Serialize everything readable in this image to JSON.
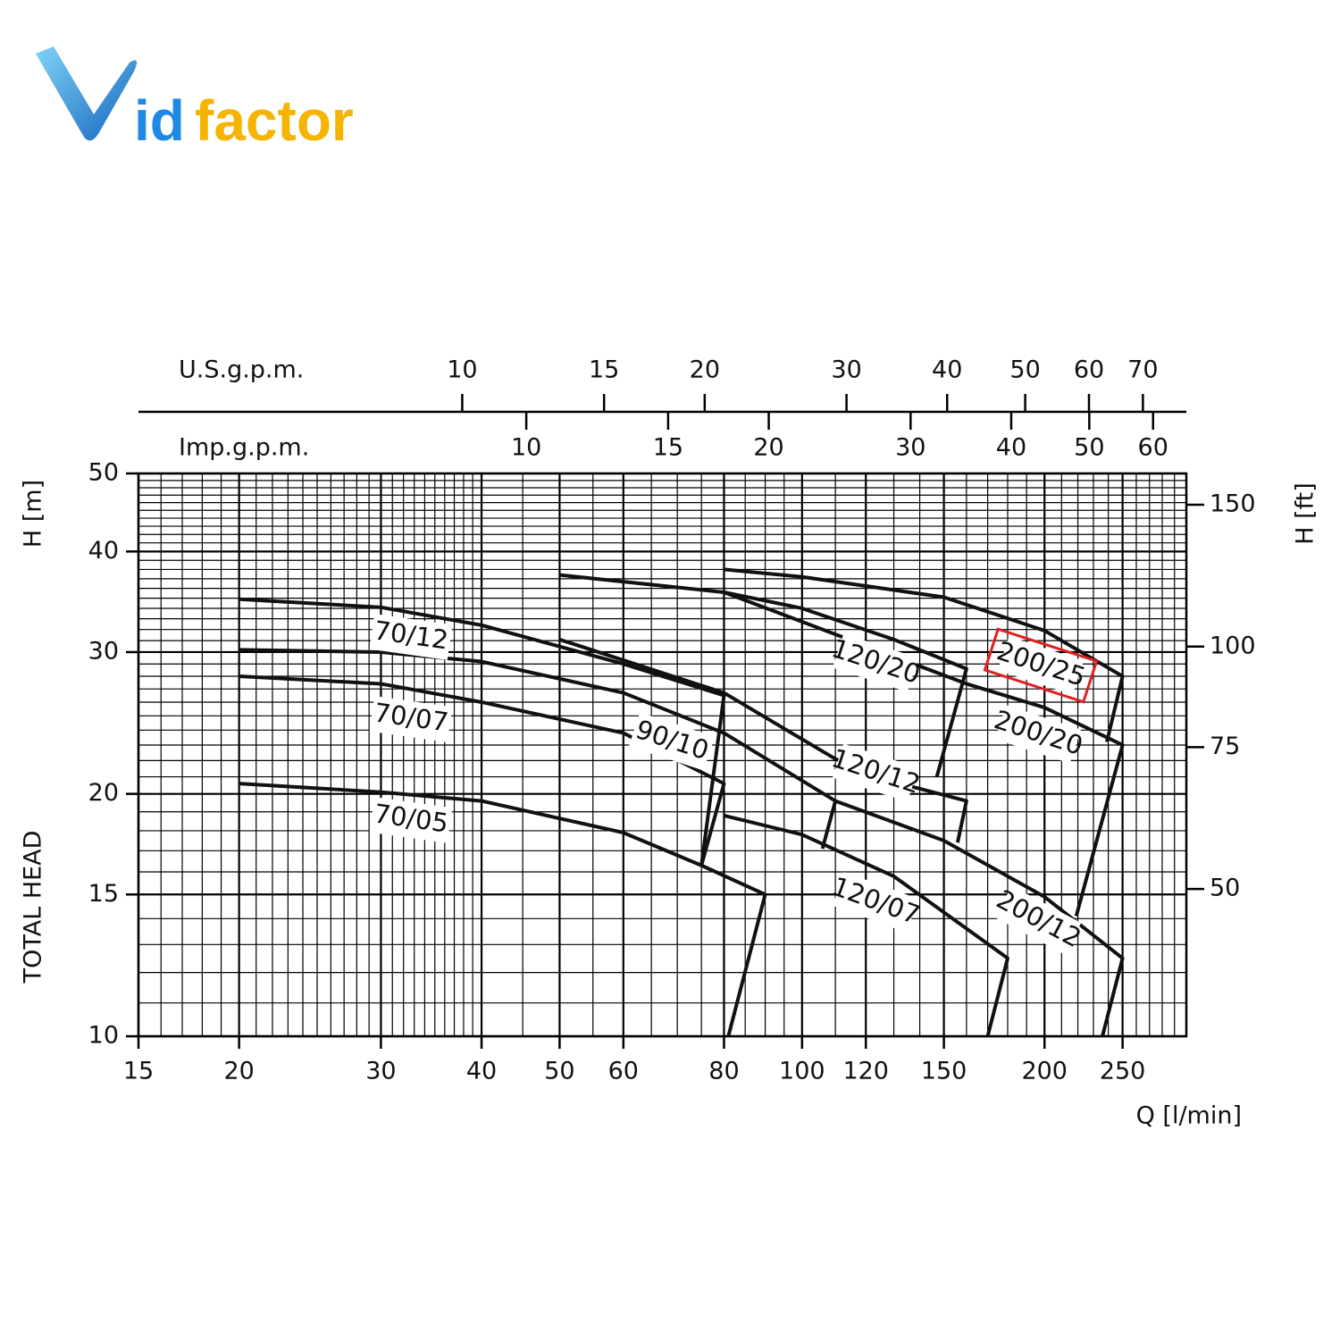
{
  "logo": [
    "id",
    "factor"
  ],
  "chart_data": {
    "type": "line",
    "x_label": "Q [l/min]",
    "y_label": "H [m]",
    "y_label_2": "TOTAL HEAD",
    "y2_label": "H [ft]",
    "xscale": "log",
    "yscale": "log",
    "grid": true,
    "minor_grid": true,
    "xlim": [
      15,
      300
    ],
    "xticks": [
      15,
      20,
      30,
      40,
      50,
      60,
      80,
      100,
      120,
      150,
      200,
      250
    ],
    "ylim": [
      10,
      50
    ],
    "yticks": [
      10,
      15,
      20,
      30,
      40,
      50
    ],
    "y2lim": [
      32.81,
      164.05
    ],
    "y2ticks": [
      50,
      75,
      100,
      150
    ],
    "top_axes": [
      {
        "label": "U.S.g.p.m.",
        "lim": [
          3.963,
          79.26
        ],
        "ticks": [
          10,
          15,
          20,
          30,
          40,
          50,
          60,
          70
        ]
      },
      {
        "label": "Imp.g.p.m.",
        "lim": [
          3.3,
          65.99
        ],
        "ticks": [
          10,
          15,
          20,
          30,
          40,
          50,
          60
        ]
      }
    ],
    "series": [
      {
        "name": "70/05",
        "color": "#111111",
        "x": [
          20,
          30,
          40,
          60,
          75,
          90,
          81
        ],
        "values": [
          20.6,
          20.1,
          19.6,
          17.9,
          16.3,
          15.0,
          10
        ]
      },
      {
        "name": "70/07",
        "color": "#111111",
        "x": [
          20,
          30,
          40,
          60,
          80,
          75
        ],
        "values": [
          28.0,
          27.4,
          26.0,
          23.8,
          20.6,
          16.3
        ]
      },
      {
        "name": "70/12",
        "color": "#111111",
        "x": [
          20,
          30,
          40,
          60,
          80,
          75
        ],
        "values": [
          34.9,
          34.1,
          32.4,
          29.0,
          26.5,
          16.3
        ]
      },
      {
        "name": "90/10",
        "color": "#111111",
        "x": [
          20,
          30,
          40,
          60,
          80,
          110,
          106
        ],
        "values": [
          30.2,
          30.0,
          29.2,
          26.7,
          23.8,
          19.6,
          17.1
        ]
      },
      {
        "name": "120/07",
        "color": "#111111",
        "x": [
          80,
          100,
          130,
          180,
          170
        ],
        "values": [
          18.8,
          17.8,
          15.8,
          12.5,
          10
        ]
      },
      {
        "name": "120/12",
        "color": "#111111",
        "x": [
          50,
          80,
          110,
          130,
          160,
          156
        ],
        "values": [
          31.1,
          26.7,
          22.1,
          20.7,
          19.6,
          17.4
        ]
      },
      {
        "name": "120/20",
        "color": "#111111",
        "x": [
          50,
          80,
          100,
          130,
          160,
          147
        ],
        "values": [
          37.4,
          35.6,
          34.0,
          31.1,
          28.6,
          21.0
        ]
      },
      {
        "name": "200/12",
        "color": "#111111",
        "x": [
          110,
          150,
          200,
          250,
          236
        ],
        "values": [
          19.6,
          17.5,
          14.9,
          12.5,
          10
        ]
      },
      {
        "name": "200/20",
        "color": "#111111",
        "x": [
          80,
          160,
          200,
          250,
          219
        ],
        "values": [
          35.6,
          27.4,
          25.6,
          23.0,
          14.1
        ]
      },
      {
        "name": "200/25",
        "color": "#111111",
        "x": [
          80,
          100,
          150,
          200,
          250,
          239
        ],
        "values": [
          38.0,
          37.2,
          35.1,
          31.9,
          28.0,
          23.2
        ]
      }
    ]
  }
}
